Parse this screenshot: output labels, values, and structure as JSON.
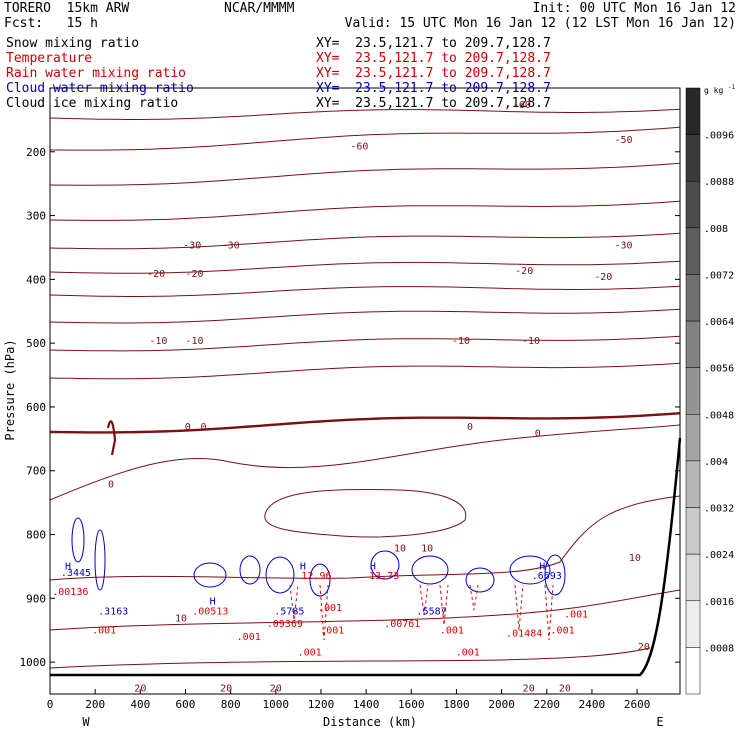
{
  "header": {
    "model": "TORERO  15km ARW",
    "center": "NCAR/MMMM",
    "init": "Init: 00 UTC Mon 16 Jan 12",
    "fcst": "Fcst:   15 h",
    "valid": "Valid: 15 UTC Mon 16 Jan 12 (12 LST Mon 16 Jan 12)"
  },
  "fields": [
    {
      "name": "Snow mixing ratio",
      "xy": "XY=  23.5,121.7 to 209.7,128.7",
      "color": "#000000"
    },
    {
      "name": "Temperature",
      "xy": "XY=  23.5,121.7 to 209.7,128.7",
      "color": "#cc0000"
    },
    {
      "name": "Rain water mixing ratio",
      "xy": "XY=  23.5,121.7 to 209.7,128.7",
      "color": "#cc0000"
    },
    {
      "name": "Cloud water mixing ratio",
      "xy": "XY=  23.5,121.7 to 209.7,128.7",
      "color": "#0000bb"
    },
    {
      "name": "Cloud ice mixing ratio",
      "xy": "XY=  23.5,121.7 to 209.7,128.7",
      "color": "#000000"
    }
  ],
  "chart_data": {
    "type": "contour",
    "xlabel": "Distance (km)",
    "ylabel": "Pressure (hPa)",
    "xlim": [
      0,
      2790
    ],
    "ylim": [
      1050,
      100
    ],
    "x_ticks": [
      0,
      200,
      400,
      600,
      800,
      1000,
      1200,
      1400,
      1600,
      1800,
      2000,
      2200,
      2400,
      2600
    ],
    "y_ticks": [
      200,
      300,
      400,
      500,
      600,
      700,
      800,
      900,
      1000
    ],
    "endpoint_labels": {
      "left": "W",
      "right": "E"
    },
    "colorbar": {
      "unit": "g kg",
      "unit_exponent": "-1",
      "ticks": [
        ".0096",
        ".0088",
        ".008",
        ".0072",
        ".0064",
        ".0056",
        ".0048",
        ".004",
        ".0032",
        ".0024",
        ".0016",
        ".0008"
      ]
    },
    "temperature_labels": [
      {
        "text": "-60",
        "x": 2090,
        "p": 125
      },
      {
        "text": "-60",
        "x": 1370,
        "p": 190
      },
      {
        "text": "-50",
        "x": 2540,
        "p": 180
      },
      {
        "text": "-30",
        "x": 630,
        "p": 345
      },
      {
        "text": "-30",
        "x": 800,
        "p": 345
      },
      {
        "text": "-30",
        "x": 2540,
        "p": 345
      },
      {
        "text": "-20",
        "x": 470,
        "p": 390
      },
      {
        "text": "-20",
        "x": 640,
        "p": 390
      },
      {
        "text": "-20",
        "x": 2100,
        "p": 385
      },
      {
        "text": "-20",
        "x": 2450,
        "p": 395
      },
      {
        "text": "-10",
        "x": 480,
        "p": 495
      },
      {
        "text": "-10",
        "x": 640,
        "p": 495
      },
      {
        "text": "-10",
        "x": 1820,
        "p": 495
      },
      {
        "text": "-10",
        "x": 2130,
        "p": 495
      },
      {
        "text": "0",
        "x": 610,
        "p": 630
      },
      {
        "text": "0",
        "x": 680,
        "p": 630
      },
      {
        "text": "0",
        "x": 1860,
        "p": 630
      },
      {
        "text": "0",
        "x": 2160,
        "p": 640
      },
      {
        "text": "0",
        "x": 270,
        "p": 720
      },
      {
        "text": "10",
        "x": 1550,
        "p": 820
      },
      {
        "text": "10",
        "x": 1670,
        "p": 820
      },
      {
        "text": "10",
        "x": 2590,
        "p": 835
      },
      {
        "text": "10",
        "x": 580,
        "p": 930
      },
      {
        "text": "20",
        "x": 2630,
        "p": 975
      },
      {
        "text": "20",
        "x": 400,
        "p": 1040
      },
      {
        "text": "20",
        "x": 780,
        "p": 1040
      },
      {
        "text": "20",
        "x": 1000,
        "p": 1040
      },
      {
        "text": "20",
        "x": 2120,
        "p": 1040
      },
      {
        "text": "20",
        "x": 2280,
        "p": 1040
      }
    ],
    "maxima": [
      {
        "text": "H",
        "x": 80,
        "p": 855
      },
      {
        "text": ".3445",
        "x": 115,
        "p": 865
      },
      {
        "text": ".00136",
        "x": 90,
        "p": 895
      },
      {
        "text": ".3163",
        "x": 280,
        "p": 925
      },
      {
        "text": "H",
        "x": 1120,
        "p": 855
      },
      {
        "text": "12.96",
        "x": 1180,
        "p": 870
      },
      {
        "text": "H",
        "x": 1430,
        "p": 855
      },
      {
        "text": "13.73",
        "x": 1480,
        "p": 870
      },
      {
        "text": "H",
        "x": 720,
        "p": 910
      },
      {
        "text": ".00513",
        "x": 710,
        "p": 925
      },
      {
        "text": ".5785",
        "x": 1060,
        "p": 925
      },
      {
        "text": ".09369",
        "x": 1040,
        "p": 945
      },
      {
        "text": ".001",
        "x": 1240,
        "p": 920
      },
      {
        "text": ".5587",
        "x": 1690,
        "p": 925
      },
      {
        "text": ".00761",
        "x": 1560,
        "p": 945
      },
      {
        "text": "H",
        "x": 2180,
        "p": 855
      },
      {
        "text": ".6693",
        "x": 2200,
        "p": 870
      },
      {
        "text": ".01484",
        "x": 2100,
        "p": 960
      },
      {
        "text": ".001",
        "x": 240,
        "p": 955
      },
      {
        "text": ".001",
        "x": 880,
        "p": 965
      },
      {
        "text": ".001",
        "x": 1150,
        "p": 990
      },
      {
        "text": ".001",
        "x": 1250,
        "p": 955
      },
      {
        "text": ".001",
        "x": 1780,
        "p": 955
      },
      {
        "text": ".001",
        "x": 1850,
        "p": 990
      },
      {
        "text": ".001",
        "x": 2270,
        "p": 955
      },
      {
        "text": ".001",
        "x": 2330,
        "p": 930
      }
    ]
  }
}
